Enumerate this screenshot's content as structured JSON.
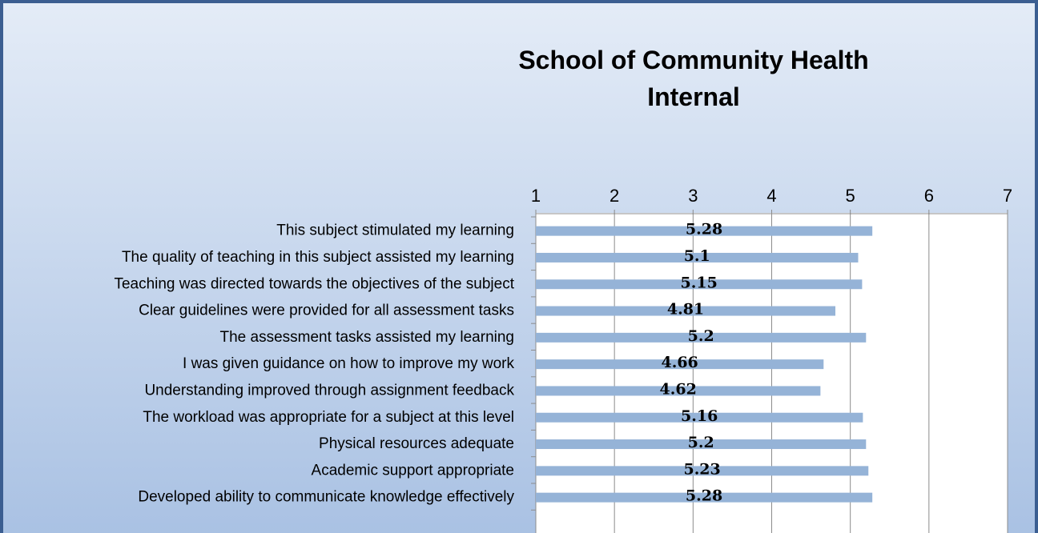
{
  "chart_data": {
    "type": "bar",
    "orientation": "horizontal",
    "title": "School of Community Health Internal",
    "categories": [
      "This subject stimulated my learning",
      "The quality of teaching in this subject assisted my learning",
      "Teaching was directed towards the objectives of the subject",
      "Clear guidelines were provided for all assessment tasks",
      "The assessment tasks assisted my learning",
      "I was given guidance on how to improve my work",
      "Understanding improved through assignment feedback",
      "The workload was appropriate for a subject at this level",
      "Physical resources adequate",
      "Academic support appropriate",
      "Developed ability to communicate knowledge effectively"
    ],
    "values": [
      5.28,
      5.1,
      5.15,
      4.81,
      5.2,
      4.66,
      4.62,
      5.16,
      5.2,
      5.23,
      5.28
    ],
    "color": "#95b3d7",
    "xlim": [
      1,
      7
    ],
    "xticks": [
      1,
      2,
      3,
      4,
      5,
      6,
      7
    ],
    "grid": true
  }
}
